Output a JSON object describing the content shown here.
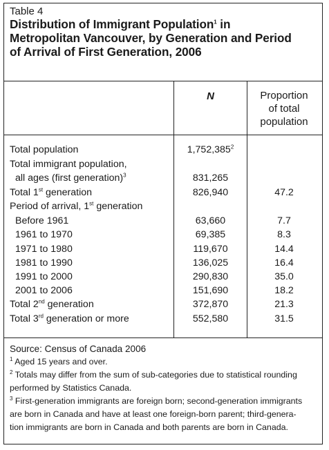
{
  "caption": {
    "label": "Table 4",
    "title_line1": "Distribution of Immigrant Population",
    "title_line1_sup": "1",
    "title_line1_end": " in",
    "title_line2": "Metropolitan Vancouver, by Generation and Period",
    "title_line3": "of Arrival of First Generation, 2006"
  },
  "columns": {
    "n": "N",
    "proportion_l1": "Proportion",
    "proportion_l2": "of total",
    "proportion_l3": "population"
  },
  "rows": {
    "total_pop": {
      "label": "Total population",
      "n": "1,752,385",
      "n_sup": "2",
      "p": ""
    },
    "imm_l1": {
      "label": "Total immigrant population,"
    },
    "imm_l2": {
      "label": "all ages (first generation)",
      "label_sup": "3",
      "n": "831,265",
      "p": ""
    },
    "gen1": {
      "label_a": "Total 1",
      "label_sup": "st",
      "label_b": " generation",
      "n": "826,940",
      "p": "47.2"
    },
    "period": {
      "label_a": "Period of arrival, 1",
      "label_sup": "st",
      "label_b": " generation"
    },
    "before_1961": {
      "label": "Before 1961",
      "n": "63,660",
      "p": "7.7"
    },
    "p1961": {
      "label": "1961 to 1970",
      "n": "69,385",
      "p": "8.3"
    },
    "p1971": {
      "label": "1971 to 1980",
      "n": "119,670",
      "p": "14.4"
    },
    "p1981": {
      "label": "1981 to 1990",
      "n": "136,025",
      "p": "16.4"
    },
    "p1991": {
      "label": "1991 to 2000",
      "n": "290,830",
      "p": "35.0"
    },
    "p2001": {
      "label": "2001 to 2006",
      "n": "151,690",
      "p": "18.2"
    },
    "gen2": {
      "label_a": "Total 2",
      "label_sup": "nd",
      "label_b": " generation",
      "n": "372,870",
      "p": "21.3"
    },
    "gen3": {
      "label_a": "Total 3",
      "label_sup": "rd",
      "label_b": " generation or more",
      "n": "552,580",
      "p": "31.5"
    }
  },
  "notes": {
    "source": "Source: Census of Canada 2006",
    "fn1_num": "1",
    "fn1": " Aged 15 years and over.",
    "fn2_num": "2",
    "fn2_l1": " Totals may differ from the sum of sub-categories due to statistical rounding",
    "fn2_l2": "performed by Statistics Canada.",
    "fn3_num": "3",
    "fn3_l1": " First-generation immigrants are foreign born; second-generation immigrants",
    "fn3_l2": "are born in Canada and have at least one foreign-born parent; third-genera-",
    "fn3_l3": "tion immigrants are born in Canada and both parents are born in Canada."
  }
}
